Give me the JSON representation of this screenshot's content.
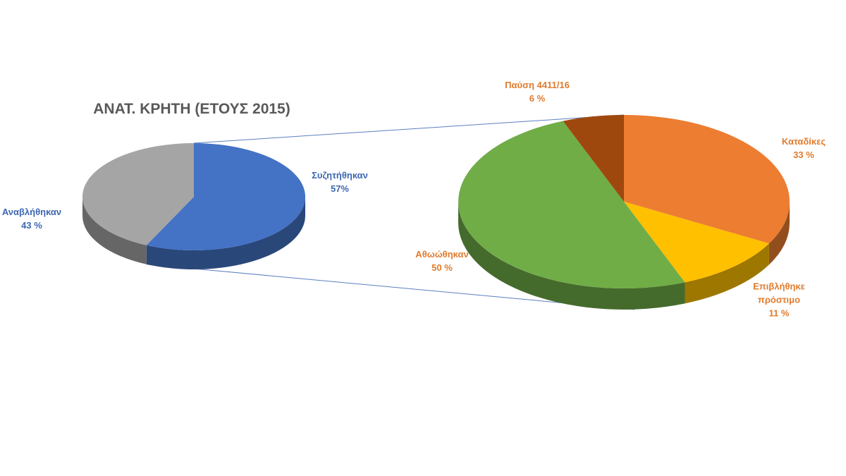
{
  "chart_data": [
    {
      "type": "pie",
      "title": "ΑΝΑΤ. ΚΡΗΤΗ (ΕΤΟΥΣ 2015)",
      "categories": [
        "Συζητήθηκαν",
        "Αναβλήθηκαν"
      ],
      "values": [
        57,
        43
      ],
      "value_labels": [
        "57%",
        "43 %"
      ],
      "colors": [
        "#4472c4",
        "#a5a5a5"
      ]
    },
    {
      "type": "pie",
      "categories": [
        "Καταδίκες",
        "Επιβλήθηκε πρόστιμο",
        "Αθωώθηκαν",
        "Παύση 4411/16"
      ],
      "values": [
        33,
        11,
        50,
        6
      ],
      "value_labels": [
        "33 %",
        "11 %",
        "50 %",
        "6 %"
      ],
      "colors": [
        "#ed7d31",
        "#ffc000",
        "#70ad47",
        "#9e480e"
      ]
    }
  ]
}
